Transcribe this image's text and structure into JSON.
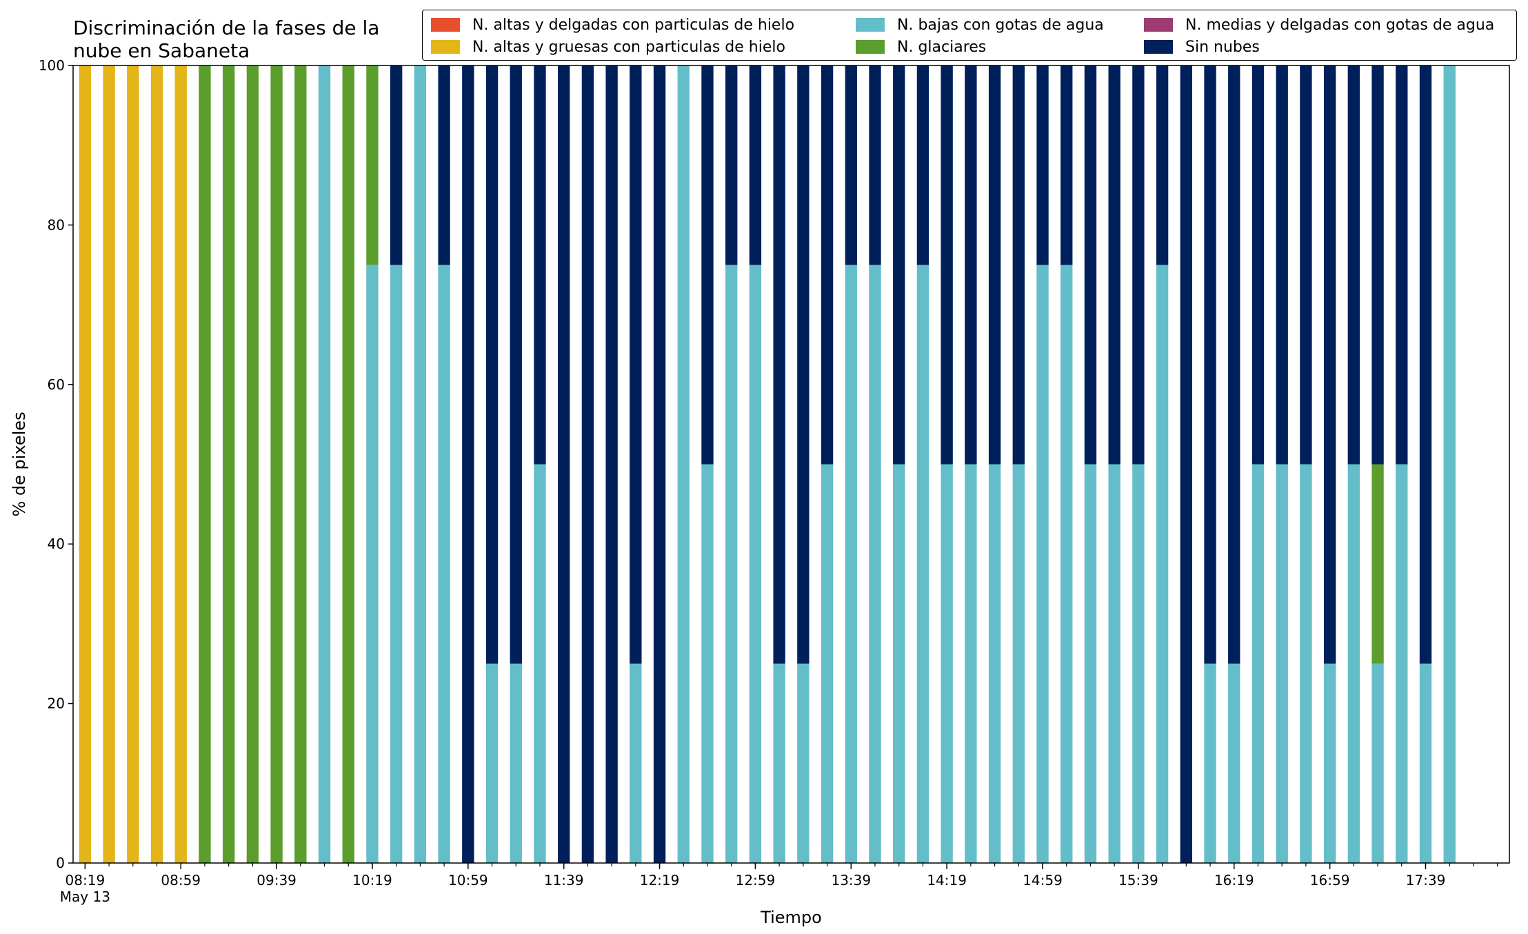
{
  "chart_data": {
    "type": "bar",
    "stacked": true,
    "title": "Discriminación de la fases de la\nnube en Sabaneta",
    "xlabel": "Tiempo",
    "ylabel": "% de pixeles",
    "ylim": [
      0,
      100
    ],
    "yticks": [
      "0",
      "20",
      "40",
      "60",
      "80",
      "100"
    ],
    "xtick_labels": [
      "08:19",
      "08:59",
      "09:39",
      "10:19",
      "10:59",
      "11:39",
      "12:19",
      "12:59",
      "13:39",
      "14:19",
      "14:59",
      "15:39",
      "16:19",
      "16:59",
      "17:39"
    ],
    "xtick_sublabel": "May 13",
    "grid": false,
    "legend_position": "top-right",
    "colors": {
      "altas_delgadas": "#e8502d",
      "altas_gruesas": "#e4b518",
      "bajas": "#63bec9",
      "glaciares": "#5c9e2e",
      "medias": "#9c3c73",
      "sin_nubes": "#00205b"
    },
    "legend": [
      {
        "key": "altas_delgadas",
        "label": "N. altas y delgadas con particulas de hielo"
      },
      {
        "key": "altas_gruesas",
        "label": "N. altas y gruesas con particulas de hielo"
      },
      {
        "key": "bajas",
        "label": "N. bajas con gotas de agua"
      },
      {
        "key": "glaciares",
        "label": "N. glaciares"
      },
      {
        "key": "medias",
        "label": "N. medias y delgadas con gotas de agua"
      },
      {
        "key": "sin_nubes",
        "label": "Sin nubes"
      }
    ],
    "series": [
      {
        "key": "altas_delgadas",
        "name": "N. altas y delgadas con particulas de hielo",
        "values": [
          0,
          0,
          0,
          0,
          0,
          0,
          0,
          0,
          0,
          0,
          0,
          0,
          0,
          0,
          0,
          0,
          0,
          0,
          0,
          0,
          0,
          0,
          0,
          0,
          0,
          0,
          0,
          0,
          0,
          0,
          0,
          0,
          0,
          0,
          0,
          0,
          0,
          0,
          0,
          0,
          0,
          0,
          0,
          0,
          0,
          0,
          0,
          0,
          0,
          0,
          0,
          0,
          0,
          0,
          0,
          0,
          0,
          0,
          0,
          0
        ]
      },
      {
        "key": "altas_gruesas",
        "name": "N. altas y gruesas con particulas de hielo",
        "values": [
          100,
          100,
          100,
          100,
          100,
          0,
          0,
          0,
          0,
          0,
          0,
          0,
          0,
          0,
          0,
          0,
          0,
          0,
          0,
          0,
          0,
          0,
          0,
          0,
          0,
          0,
          0,
          0,
          0,
          0,
          0,
          0,
          0,
          0,
          0,
          0,
          0,
          0,
          0,
          0,
          0,
          0,
          0,
          0,
          0,
          0,
          0,
          0,
          0,
          0,
          0,
          0,
          0,
          0,
          0,
          0,
          0,
          0,
          0,
          0
        ]
      },
      {
        "key": "bajas",
        "name": "N. bajas con gotas de agua",
        "values": [
          0,
          0,
          0,
          0,
          0,
          0,
          0,
          0,
          0,
          0,
          100,
          0,
          75,
          75,
          100,
          75,
          0,
          25,
          25,
          50,
          0,
          0,
          0,
          25,
          0,
          100,
          50,
          75,
          75,
          25,
          25,
          50,
          75,
          75,
          50,
          75,
          50,
          50,
          50,
          50,
          75,
          75,
          50,
          50,
          50,
          75,
          0,
          25,
          25,
          50,
          50,
          50,
          25,
          50,
          25,
          50,
          25,
          100,
          0,
          0
        ]
      },
      {
        "key": "glaciares",
        "name": "N. glaciares",
        "values": [
          0,
          0,
          0,
          0,
          0,
          100,
          100,
          100,
          100,
          100,
          0,
          100,
          25,
          0,
          0,
          0,
          0,
          0,
          0,
          0,
          0,
          0,
          0,
          0,
          0,
          0,
          0,
          0,
          0,
          0,
          0,
          0,
          0,
          0,
          0,
          0,
          0,
          0,
          0,
          0,
          0,
          0,
          0,
          0,
          0,
          0,
          0,
          0,
          0,
          0,
          0,
          0,
          0,
          0,
          25,
          0,
          0,
          0,
          0,
          0
        ]
      },
      {
        "key": "medias",
        "name": "N. medias y delgadas con gotas de agua",
        "values": [
          0,
          0,
          0,
          0,
          0,
          0,
          0,
          0,
          0,
          0,
          0,
          0,
          0,
          0,
          0,
          0,
          0,
          0,
          0,
          0,
          0,
          0,
          0,
          0,
          0,
          0,
          0,
          0,
          0,
          0,
          0,
          0,
          0,
          0,
          0,
          0,
          0,
          0,
          0,
          0,
          0,
          0,
          0,
          0,
          0,
          0,
          0,
          0,
          0,
          0,
          0,
          0,
          0,
          0,
          0,
          0,
          0,
          0,
          0,
          0
        ]
      },
      {
        "key": "sin_nubes",
        "name": "Sin nubes",
        "values": [
          0,
          0,
          0,
          0,
          0,
          0,
          0,
          0,
          0,
          0,
          0,
          0,
          0,
          25,
          0,
          25,
          100,
          75,
          75,
          50,
          100,
          100,
          100,
          75,
          100,
          0,
          50,
          25,
          25,
          75,
          75,
          50,
          25,
          25,
          50,
          25,
          50,
          50,
          50,
          50,
          25,
          25,
          50,
          50,
          50,
          25,
          100,
          75,
          75,
          50,
          50,
          50,
          75,
          50,
          50,
          50,
          75,
          0,
          0,
          0
        ]
      }
    ]
  }
}
